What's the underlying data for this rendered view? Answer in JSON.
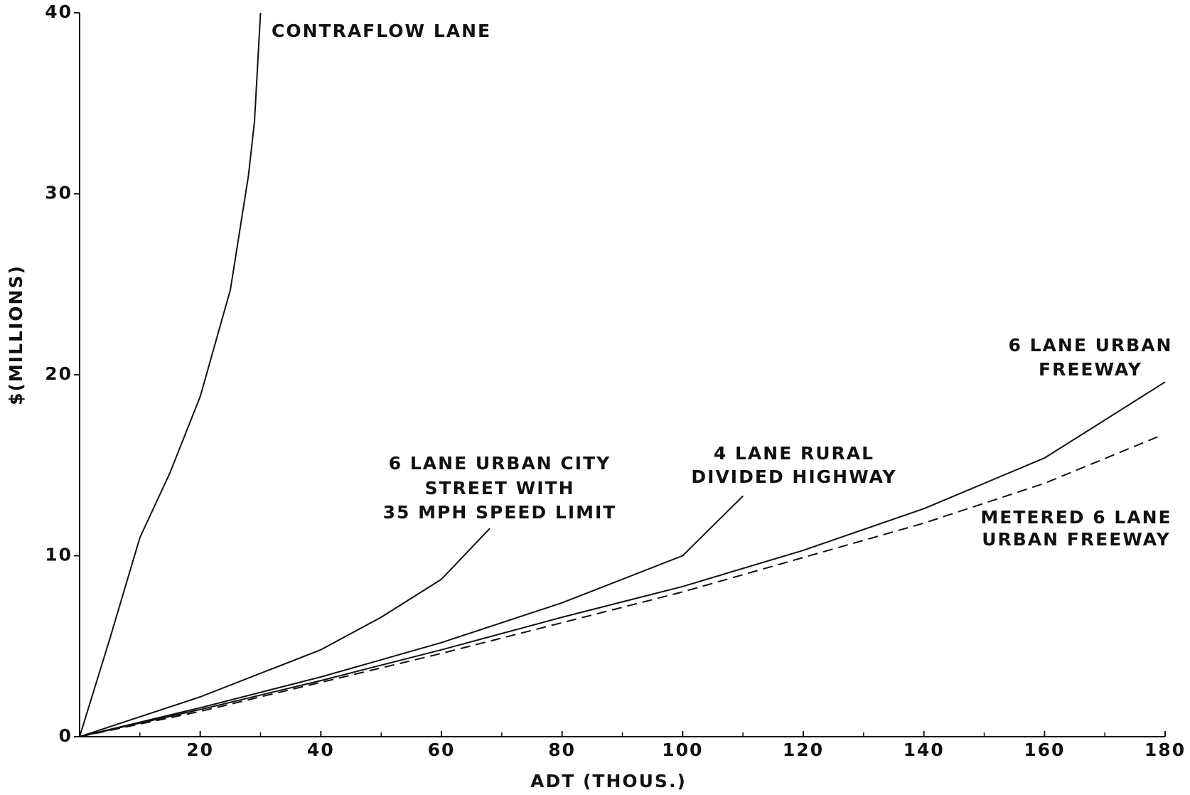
{
  "chart_data": {
    "type": "line",
    "xlabel": "ADT (THOUS.)",
    "ylabel": "$(MILLIONS)",
    "xlim": [
      0,
      180
    ],
    "ylim": [
      0,
      40
    ],
    "xticks": [
      20,
      40,
      60,
      80,
      100,
      120,
      140,
      160,
      180
    ],
    "xminor": [
      10,
      30,
      50,
      70,
      90,
      110,
      130,
      150,
      170
    ],
    "yticks": [
      0,
      10,
      20,
      30,
      40
    ],
    "series": [
      {
        "labels": [
          "CONTRAFLOW LANE"
        ],
        "color": "#111111",
        "dash": false,
        "x": [
          0,
          5,
          10,
          15,
          20,
          25,
          28,
          29,
          30
        ],
        "values": [
          0,
          5.4,
          11,
          14.6,
          18.8,
          24.7,
          31,
          34,
          40
        ]
      },
      {
        "labels": [
          "6 LANE URBAN CITY",
          "STREET WITH",
          "35 MPH SPEED LIMIT"
        ],
        "color": "#111111",
        "dash": false,
        "x": [
          0,
          20,
          40,
          50,
          60,
          68
        ],
        "values": [
          0,
          2.2,
          4.8,
          6.6,
          8.7,
          11.5
        ]
      },
      {
        "labels": [
          "4 LANE RURAL",
          "DIVIDED HIGHWAY"
        ],
        "color": "#111111",
        "dash": false,
        "x": [
          0,
          20,
          40,
          60,
          80,
          100,
          110
        ],
        "values": [
          0,
          1.6,
          3.3,
          5.2,
          7.4,
          10,
          13.3
        ]
      },
      {
        "labels": [
          "6 LANE URBAN",
          "FREEWAY"
        ],
        "color": "#111111",
        "dash": false,
        "x": [
          0,
          20,
          40,
          60,
          80,
          100,
          120,
          140,
          160,
          180
        ],
        "values": [
          0,
          1.5,
          3.1,
          4.8,
          6.6,
          8.3,
          10.3,
          12.6,
          15.4,
          19.6
        ]
      },
      {
        "labels": [
          "METERED 6 LANE",
          "URBAN FREEWAY"
        ],
        "color": "#111111",
        "dash": true,
        "x": [
          0,
          20,
          40,
          60,
          80,
          100,
          120,
          140,
          160,
          179
        ],
        "values": [
          0,
          1.4,
          3,
          4.6,
          6.3,
          8,
          9.9,
          11.8,
          14,
          16.6
        ]
      }
    ]
  }
}
